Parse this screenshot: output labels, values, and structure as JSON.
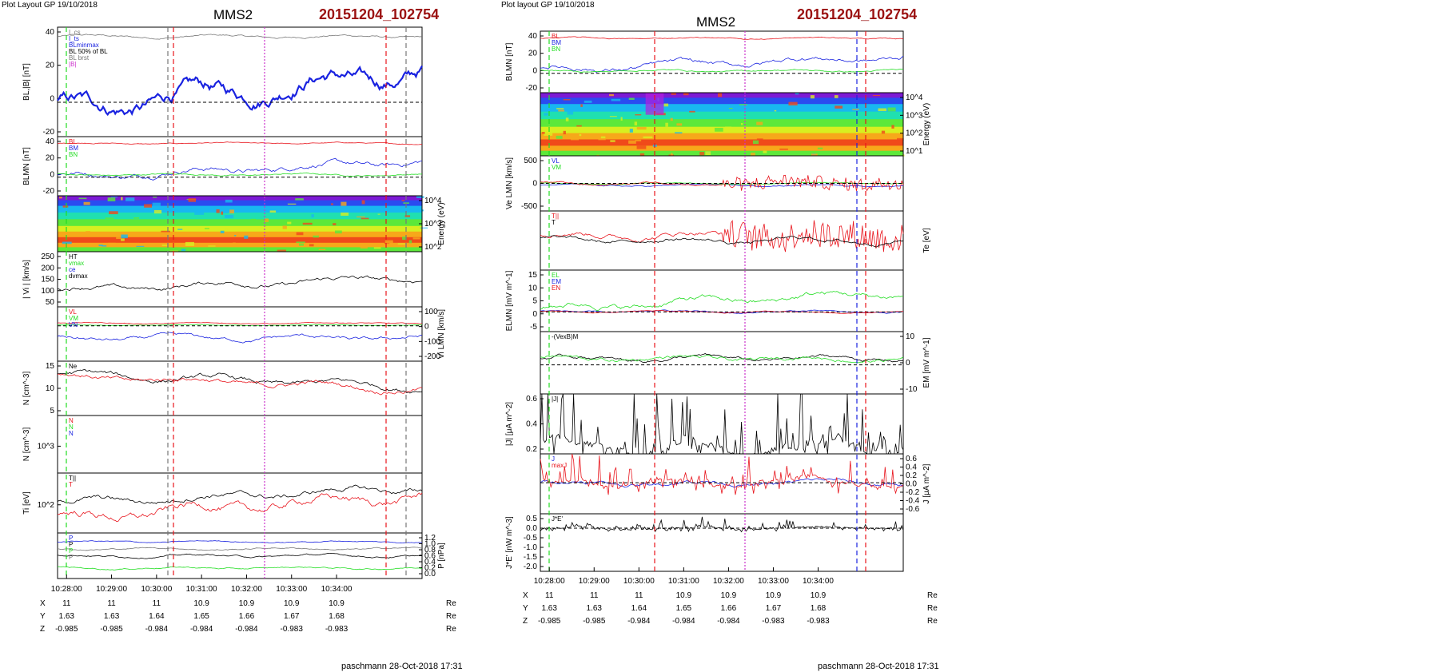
{
  "header": {
    "left_tag": "Plot Layout GP 19/10/2018",
    "right_tag": "Plot layout GP 19/10/2018",
    "spacecraft": "MMS2",
    "event": "20151204_102754",
    "footer": "paschmann 28-Oct-2018 17:31"
  },
  "colors": {
    "event": "#9b1111",
    "red": "#e8141c",
    "blue": "#1a23e0",
    "green": "#22dd22",
    "gray": "#777777",
    "black": "#000000",
    "magenta": "#cc33cc"
  },
  "axis": {
    "time_labels": [
      "10:28:00",
      "10:29:00",
      "10:30:00",
      "10:31:00",
      "10:32:00",
      "10:33:00",
      "10:34:00"
    ],
    "unit": "Re",
    "pos_rows": [
      {
        "name": "X",
        "values": [
          "11",
          "11",
          "11",
          "10.9",
          "10.9",
          "10.9",
          "10.9"
        ]
      },
      {
        "name": "Y",
        "values": [
          "1.63",
          "1.63",
          "1.64",
          "1.65",
          "1.66",
          "1.67",
          "1.68"
        ]
      },
      {
        "name": "Z",
        "values": [
          "-0.985",
          "-0.985",
          "-0.984",
          "-0.984",
          "-0.984",
          "-0.983",
          "-0.983"
        ]
      }
    ]
  },
  "chart_data": [
    {
      "type": "line",
      "title": "MMS2",
      "panels": [
        {
          "id": "bl",
          "ylabel": "BL,|B| [nT]",
          "ylim": [
            -22,
            48
          ],
          "yticks": [
            "40",
            "20",
            "0",
            "-20"
          ],
          "side": "left",
          "legend": [
            "I_cs",
            "I_ts",
            "BLminmax",
            "BL 50% of BL",
            "BL brst",
            "|B|"
          ],
          "series": [
            {
              "color": "gray",
              "base": 42,
              "amp": 3
            },
            {
              "color": "blue",
              "base": 5,
              "amp": 20,
              "thick": true,
              "trend": "up"
            }
          ]
        },
        {
          "id": "blmn",
          "ylabel": "BLMN [nT]",
          "ylim": [
            -22,
            48
          ],
          "yticks": [
            "40",
            "20",
            "0",
            "-20"
          ],
          "side": "left",
          "legend": [
            "BL",
            "BM",
            "BN"
          ],
          "series": [
            {
              "color": "red",
              "base": 40,
              "amp": 3
            },
            {
              "color": "blue",
              "base": 8,
              "amp": 14,
              "trend": "up"
            },
            {
              "color": "green",
              "base": 3,
              "amp": 4
            }
          ]
        },
        {
          "id": "ispec",
          "ylabel": "Energy (eV)",
          "type": "heatmap",
          "yticks": [
            "10^4",
            "10^3",
            "10^2"
          ],
          "side": "right"
        },
        {
          "id": "vi",
          "ylabel": "| Vi | [km/s]",
          "ylim": [
            0,
            280
          ],
          "yticks": [
            "250",
            "200",
            "150",
            "100",
            "50"
          ],
          "side": "left",
          "legend": [
            "HT",
            "vmax",
            "ce",
            "dvmax"
          ],
          "series": [
            {
              "color": "black",
              "base": 110,
              "amp": 50,
              "trend": "up"
            }
          ]
        },
        {
          "id": "vilmn",
          "ylabel": "Vi LMN [km/s]",
          "ylim": [
            -260,
            140
          ],
          "yticks": [
            "100",
            "0",
            "-100",
            "-200"
          ],
          "side": "right",
          "legend": [
            "VL",
            "VM",
            "VN"
          ],
          "series": [
            {
              "color": "red",
              "base": 20,
              "amp": 15
            },
            {
              "color": "green",
              "base": 5,
              "amp": 8
            },
            {
              "color": "blue",
              "base": -90,
              "amp": 60
            }
          ]
        },
        {
          "id": "n",
          "ylabel": "N [cm^-3]",
          "ylim": [
            2,
            17
          ],
          "yticks": [
            "15",
            "10",
            "5"
          ],
          "side": "left",
          "legend": [
            "Ne"
          ],
          "series": [
            {
              "color": "black",
              "base": 12,
              "amp": 3,
              "trend": "down"
            },
            {
              "color": "red",
              "base": 11.5,
              "amp": 3,
              "trend": "down"
            }
          ]
        },
        {
          "id": "nlog",
          "ylabel": "N [cm^-3]",
          "yticks": [
            "10^3"
          ],
          "side": "left",
          "legend": [
            "N",
            "N",
            "N"
          ],
          "series": []
        },
        {
          "id": "ti",
          "ylabel": "Ti [eV]",
          "ylim": [
            0,
            10
          ],
          "yticks": [
            "10^2"
          ],
          "side": "left",
          "legend": [
            "T||",
            "T"
          ],
          "series": [
            {
              "color": "black",
              "base": 6,
              "amp": 2,
              "trend": "up"
            },
            {
              "color": "red",
              "base": 4,
              "amp": 3,
              "trend": "up"
            }
          ]
        },
        {
          "id": "p",
          "ylabel": "P [nPa]",
          "ylim": [
            0,
            1.3
          ],
          "yticks": [
            "1.2",
            "1.0",
            "0.8",
            "0.6",
            "0.4",
            "0.2",
            "0.0"
          ],
          "side": "right",
          "legend": [
            "P",
            "P",
            "P",
            "P"
          ],
          "series": [
            {
              "color": "blue",
              "base": 1.05,
              "amp": 0.08
            },
            {
              "color": "black",
              "base": 0.65,
              "amp": 0.12
            },
            {
              "color": "green",
              "base": 0.3,
              "amp": 0.1
            },
            {
              "color": "gray",
              "base": 0.85,
              "amp": 0.1
            }
          ]
        }
      ]
    },
    {
      "type": "line",
      "title": "MMS2",
      "panels": [
        {
          "id": "blmn",
          "ylabel": "BLMN [nT]",
          "ylim": [
            -22,
            48
          ],
          "yticks": [
            "40",
            "20",
            "0",
            "-20"
          ],
          "side": "left",
          "legend": [
            "BL",
            "BM",
            "BN"
          ],
          "series": [
            {
              "color": "red",
              "base": 40,
              "amp": 3
            },
            {
              "color": "blue",
              "base": 10,
              "amp": 12,
              "trend": "up"
            },
            {
              "color": "green",
              "base": 3,
              "amp": 4
            }
          ]
        },
        {
          "id": "espec",
          "ylabel": "Energy (eV)",
          "type": "heatmap",
          "yticks": [
            "10^4",
            "10^3",
            "10^2",
            "10^1"
          ],
          "side": "right"
        },
        {
          "id": "ve",
          "ylabel": "Ve LMN [km/s]",
          "ylim": [
            -750,
            750
          ],
          "yticks": [
            "500",
            "0",
            "-500"
          ],
          "side": "left",
          "legend": [
            "VL",
            "VM"
          ],
          "series": [
            {
              "color": "blue",
              "base": -60,
              "amp": 80
            },
            {
              "color": "green",
              "base": 0,
              "amp": 60
            },
            {
              "color": "red",
              "base": 0,
              "amp": 150,
              "trend": "burst"
            }
          ]
        },
        {
          "id": "te",
          "ylabel": "Te [eV]",
          "ylim": [
            0,
            10
          ],
          "yticks": [],
          "side": "right",
          "legend": [
            "T||",
            "T"
          ],
          "series": [
            {
              "color": "red",
              "base": 6,
              "amp": 2,
              "trend": "burst"
            },
            {
              "color": "black",
              "base": 5,
              "amp": 1.5
            }
          ]
        },
        {
          "id": "e",
          "ylabel": "ELMN [mV m^-1]",
          "ylim": [
            -8,
            17
          ],
          "yticks": [
            "15",
            "10",
            "5",
            "0",
            "-5"
          ],
          "side": "left",
          "legend": [
            "EL",
            "EM",
            "EN"
          ],
          "series": [
            {
              "color": "green",
              "base": 4,
              "amp": 5,
              "trend": "up"
            },
            {
              "color": "blue",
              "base": 0,
              "amp": 1.5
            },
            {
              "color": "red",
              "base": 0,
              "amp": 1
            }
          ]
        },
        {
          "id": "em",
          "ylabel": "EM [mV m^-1]",
          "ylim": [
            -14,
            16
          ],
          "yticks": [
            "10",
            "0",
            "-10"
          ],
          "side": "right",
          "legend": [
            "-(VexB)M"
          ],
          "series": [
            {
              "color": "black",
              "base": 3,
              "amp": 4
            },
            {
              "color": "green",
              "base": 3,
              "amp": 4
            }
          ]
        },
        {
          "id": "j",
          "ylabel": "|J| [μA m^-2]",
          "ylim": [
            0,
            0.72
          ],
          "yticks": [
            "0.6",
            "0.4",
            "0.2"
          ],
          "side": "left",
          "legend": [
            "|J|"
          ],
          "series": [
            {
              "color": "black",
              "base": 0.1,
              "amp": 0.35,
              "trend": "spiky"
            }
          ]
        },
        {
          "id": "jlmn",
          "ylabel": "J [μA m^-2]",
          "ylim": [
            -0.7,
            0.65
          ],
          "yticks": [
            "0.6",
            "0.4",
            "0.2",
            "0.0",
            "-0.2",
            "-0.4",
            "-0.6"
          ],
          "side": "right",
          "legend": [
            "J",
            "maxJ"
          ],
          "series": [
            {
              "color": "blue",
              "base": 0,
              "amp": 0.2
            },
            {
              "color": "red",
              "base": 0,
              "amp": 0.3,
              "trend": "spiky"
            }
          ]
        },
        {
          "id": "je",
          "ylabel": "J*E' [nW m^-3]",
          "ylim": [
            -2.1,
            0.7
          ],
          "yticks": [
            "0.5",
            "0.0",
            "-0.5",
            "-1.0",
            "-1.5",
            "-2.0"
          ],
          "side": "left",
          "legend": [
            "J*E'"
          ],
          "series": [
            {
              "color": "black",
              "base": 0,
              "amp": 0.2,
              "trend": "spiky"
            }
          ]
        }
      ]
    }
  ]
}
